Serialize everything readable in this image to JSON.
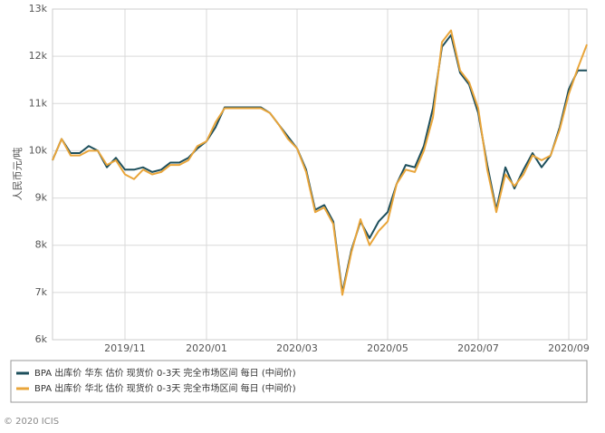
{
  "chart_data": {
    "type": "line",
    "y_label": "人民币元/吨",
    "categories": [
      null,
      null,
      null,
      null,
      null,
      null,
      null,
      null,
      "2019/11",
      null,
      null,
      null,
      null,
      null,
      null,
      null,
      null,
      "2020/01",
      null,
      null,
      null,
      null,
      null,
      null,
      null,
      null,
      null,
      "2020/03",
      null,
      null,
      null,
      null,
      null,
      null,
      null,
      null,
      null,
      "2020/05",
      null,
      null,
      null,
      null,
      null,
      null,
      null,
      null,
      null,
      "2020/07",
      null,
      null,
      null,
      null,
      null,
      null,
      null,
      null,
      null,
      "2020/09",
      null,
      null
    ],
    "series": [
      {
        "name": "BPA 出库价 华东 估价 现货价 0-3天 完全市场区间 每日 (中间价)",
        "color": "#1d4f5c",
        "values": [
          9800,
          10250,
          9950,
          9950,
          10100,
          10000,
          9650,
          9850,
          9600,
          9600,
          9650,
          9550,
          9600,
          9750,
          9750,
          9850,
          10050,
          10200,
          10500,
          10920,
          10920,
          10920,
          10920,
          10920,
          10800,
          10550,
          10300,
          10050,
          9600,
          8750,
          8850,
          8500,
          7000,
          7900,
          8500,
          8150,
          8500,
          8700,
          9300,
          9700,
          9650,
          10100,
          10900,
          12200,
          12450,
          11650,
          11400,
          10800,
          9700,
          8750,
          9650,
          9200,
          9600,
          9950,
          9650,
          9900,
          10500,
          11300,
          11700,
          11700
        ]
      },
      {
        "name": "BPA 出库价 华北 估价 现货价 0-3天 完全市场区间 每日 (中间价)",
        "color": "#e9a53a",
        "values": [
          9800,
          10250,
          9900,
          9900,
          10000,
          10000,
          9700,
          9800,
          9500,
          9400,
          9600,
          9500,
          9550,
          9700,
          9700,
          9800,
          10100,
          10200,
          10600,
          10900,
          10900,
          10900,
          10900,
          10900,
          10800,
          10550,
          10250,
          10050,
          9550,
          8700,
          8800,
          8450,
          6950,
          7850,
          8550,
          8000,
          8300,
          8500,
          9300,
          9600,
          9550,
          10000,
          10700,
          12300,
          12550,
          11700,
          11450,
          10900,
          9600,
          8700,
          9500,
          9250,
          9500,
          9900,
          9800,
          9900,
          10450,
          11200,
          11750,
          12250
        ]
      }
    ],
    "ylim": [
      6000,
      13000
    ],
    "yticks": [
      {
        "value": 6000,
        "label": "6k"
      },
      {
        "value": 7000,
        "label": "7k"
      },
      {
        "value": 8000,
        "label": "8k"
      },
      {
        "value": 9000,
        "label": "9k"
      },
      {
        "value": 10000,
        "label": "10k"
      },
      {
        "value": 11000,
        "label": "11k"
      },
      {
        "value": 12000,
        "label": "12k"
      },
      {
        "value": 13000,
        "label": "13k"
      }
    ],
    "grid": true
  },
  "footer": "© 2020 ICIS"
}
